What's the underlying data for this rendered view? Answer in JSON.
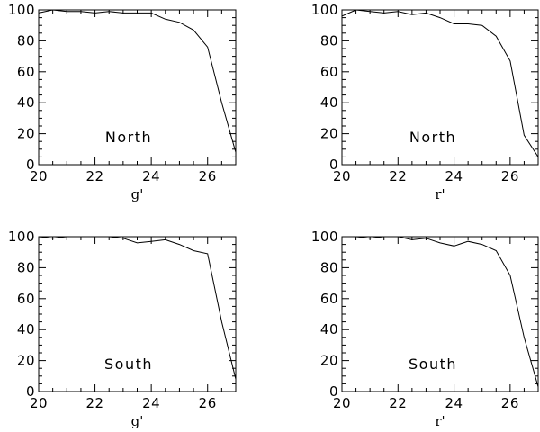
{
  "chart_data": [
    {
      "type": "line",
      "panel": "top-left",
      "annotation": "North",
      "xlabel": "g'",
      "ylabel": "",
      "xlim": [
        20,
        27
      ],
      "ylim": [
        0,
        100
      ],
      "xticks": [
        20,
        22,
        24,
        26
      ],
      "yticks": [
        0,
        20,
        40,
        60,
        80,
        100
      ],
      "series": [
        {
          "x": [
            20,
            20.5,
            21,
            21.5,
            22,
            22.5,
            23,
            23.5,
            24,
            24.5,
            25,
            25.5,
            26,
            26.5,
            27
          ],
          "y": [
            98,
            100,
            99,
            99,
            98,
            99,
            98,
            98,
            98,
            94,
            92,
            87,
            76,
            40,
            8
          ]
        }
      ]
    },
    {
      "type": "line",
      "panel": "top-right",
      "annotation": "North",
      "xlabel": "r'",
      "ylabel": "",
      "xlim": [
        20,
        27
      ],
      "ylim": [
        0,
        100
      ],
      "xticks": [
        20,
        22,
        24,
        26
      ],
      "yticks": [
        0,
        20,
        40,
        60,
        80,
        100
      ],
      "series": [
        {
          "x": [
            20,
            20.5,
            21,
            21.5,
            22,
            22.5,
            23,
            23.5,
            24,
            24.5,
            25,
            25.5,
            26,
            26.5,
            27
          ],
          "y": [
            96,
            100,
            99,
            98,
            99,
            97,
            98,
            95,
            91,
            91,
            90,
            83,
            67,
            19,
            5
          ]
        }
      ]
    },
    {
      "type": "line",
      "panel": "bottom-left",
      "annotation": "South",
      "xlabel": "g'",
      "ylabel": "",
      "xlim": [
        20,
        27
      ],
      "ylim": [
        0,
        100
      ],
      "xticks": [
        20,
        22,
        24,
        26
      ],
      "yticks": [
        0,
        20,
        40,
        60,
        80,
        100
      ],
      "series": [
        {
          "x": [
            20,
            20.5,
            21,
            21.5,
            22,
            22.5,
            23,
            23.5,
            24,
            24.5,
            25,
            25.5,
            26,
            26.5,
            27
          ],
          "y": [
            100,
            99,
            100,
            100,
            100,
            100,
            99,
            96,
            97,
            98,
            95,
            91,
            89,
            45,
            8
          ]
        }
      ]
    },
    {
      "type": "line",
      "panel": "bottom-right",
      "annotation": "South",
      "xlabel": "r'",
      "ylabel": "",
      "xlim": [
        20,
        27
      ],
      "ylim": [
        0,
        100
      ],
      "xticks": [
        20,
        22,
        24,
        26
      ],
      "yticks": [
        0,
        20,
        40,
        60,
        80,
        100
      ],
      "series": [
        {
          "x": [
            20,
            20.5,
            21,
            21.5,
            22,
            22.5,
            23,
            23.5,
            24,
            24.5,
            25,
            25.5,
            26,
            26.5,
            27
          ],
          "y": [
            100,
            100,
            99,
            100,
            100,
            98,
            99,
            96,
            94,
            97,
            95,
            91,
            75,
            35,
            3
          ]
        }
      ]
    }
  ]
}
